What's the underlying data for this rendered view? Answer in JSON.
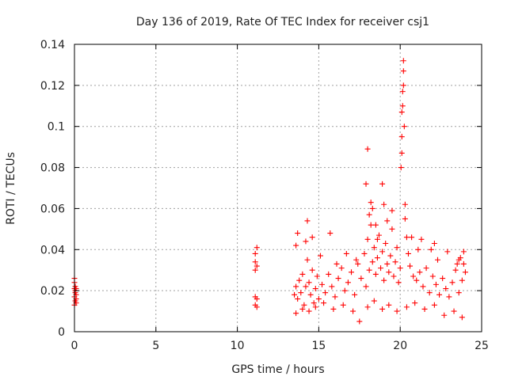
{
  "chart_data": {
    "type": "scatter",
    "title": "Day 136 of 2019, Rate Of TEC Index for receiver csj1",
    "xlabel": "GPS time / hours",
    "ylabel": "ROTI / TECUs",
    "xlim": [
      0,
      25
    ],
    "ylim": [
      0,
      0.14
    ],
    "xticks": [
      0,
      5,
      10,
      15,
      20,
      25
    ],
    "xtick_labels": [
      "0",
      "5",
      "10",
      "15",
      "20",
      "25"
    ],
    "yticks": [
      0,
      0.02,
      0.04,
      0.06,
      0.08,
      0.1,
      0.12,
      0.14
    ],
    "ytick_labels": [
      "0",
      "0.02",
      "0.04",
      "0.06",
      "0.08",
      "0.1",
      "0.12",
      "0.14"
    ],
    "grid": true,
    "marker": "+",
    "color": "#ff0000",
    "series": [
      {
        "name": "ROTI",
        "x": [
          0.0,
          0.0,
          0.0,
          0.0,
          0.0,
          0.05,
          0.05,
          0.05,
          0.05,
          0.1,
          0.1,
          0.1,
          0.1,
          11.1,
          11.1,
          11.1,
          11.1,
          11.1,
          11.2,
          11.2,
          11.2,
          11.2,
          13.5,
          13.6,
          13.7,
          13.8,
          13.9,
          14.0,
          14.1,
          14.2,
          14.3,
          14.4,
          14.5,
          14.6,
          14.7,
          14.8,
          14.9,
          15.0,
          15.2,
          15.4,
          15.6,
          15.8,
          16.0,
          16.2,
          16.4,
          16.6,
          16.8,
          17.0,
          17.2,
          17.4,
          17.6,
          17.8,
          17.9,
          18.0,
          18.1,
          18.2,
          18.3,
          18.4,
          18.5,
          18.6,
          18.7,
          18.8,
          18.9,
          19.0,
          19.1,
          19.2,
          19.3,
          19.4,
          19.5,
          19.6,
          19.7,
          19.8,
          19.9,
          20.0,
          20.05,
          20.1,
          20.1,
          20.1,
          20.15,
          20.15,
          20.2,
          20.2,
          20.2,
          20.25,
          20.3,
          20.3,
          20.4,
          20.5,
          20.6,
          20.8,
          21.0,
          21.2,
          21.4,
          21.6,
          21.8,
          22.0,
          22.2,
          22.4,
          22.6,
          22.8,
          23.0,
          23.2,
          23.4,
          23.6,
          23.7,
          23.8,
          23.9,
          24.0,
          13.6,
          14.0,
          14.4,
          14.8,
          15.3,
          15.9,
          16.5,
          17.1,
          17.5,
          18.0,
          18.4,
          18.9,
          19.3,
          19.8,
          20.4,
          20.9,
          21.5,
          22.1,
          22.7,
          23.3,
          23.8,
          14.2,
          15.1,
          16.1,
          17.3,
          18.6,
          19.5,
          21.1,
          22.3,
          23.5,
          17.9,
          18.0,
          18.2,
          18.9,
          19.0,
          18.3,
          18.5,
          21.3,
          22.1,
          23.9,
          13.6,
          13.7,
          14.3,
          14.6,
          15.7,
          16.7,
          18.1,
          19.2,
          20.7,
          21.9,
          22.9,
          23.6
        ],
        "y": [
          0.013,
          0.017,
          0.021,
          0.024,
          0.026,
          0.015,
          0.019,
          0.022,
          0.02,
          0.014,
          0.018,
          0.021,
          0.016,
          0.013,
          0.017,
          0.03,
          0.034,
          0.038,
          0.012,
          0.016,
          0.032,
          0.041,
          0.018,
          0.022,
          0.016,
          0.025,
          0.019,
          0.028,
          0.013,
          0.022,
          0.035,
          0.024,
          0.018,
          0.03,
          0.014,
          0.021,
          0.027,
          0.016,
          0.023,
          0.019,
          0.028,
          0.022,
          0.017,
          0.026,
          0.031,
          0.02,
          0.024,
          0.029,
          0.018,
          0.033,
          0.026,
          0.038,
          0.022,
          0.045,
          0.03,
          0.052,
          0.034,
          0.041,
          0.028,
          0.036,
          0.047,
          0.031,
          0.039,
          0.025,
          0.043,
          0.033,
          0.029,
          0.037,
          0.05,
          0.027,
          0.034,
          0.041,
          0.024,
          0.031,
          0.08,
          0.087,
          0.095,
          0.107,
          0.11,
          0.117,
          0.12,
          0.127,
          0.132,
          0.1,
          0.062,
          0.055,
          0.046,
          0.038,
          0.032,
          0.027,
          0.025,
          0.029,
          0.022,
          0.031,
          0.019,
          0.027,
          0.023,
          0.018,
          0.026,
          0.021,
          0.017,
          0.024,
          0.03,
          0.019,
          0.036,
          0.025,
          0.039,
          0.029,
          0.009,
          0.011,
          0.01,
          0.012,
          0.014,
          0.011,
          0.013,
          0.01,
          0.005,
          0.012,
          0.015,
          0.011,
          0.013,
          0.01,
          0.012,
          0.014,
          0.011,
          0.013,
          0.008,
          0.01,
          0.007,
          0.044,
          0.037,
          0.033,
          0.035,
          0.045,
          0.059,
          0.04,
          0.035,
          0.033,
          0.072,
          0.089,
          0.063,
          0.072,
          0.062,
          0.06,
          0.052,
          0.045,
          0.043,
          0.033,
          0.042,
          0.048,
          0.054,
          0.046,
          0.048,
          0.038,
          0.057,
          0.054,
          0.046,
          0.04,
          0.039,
          0.035
        ]
      }
    ]
  }
}
